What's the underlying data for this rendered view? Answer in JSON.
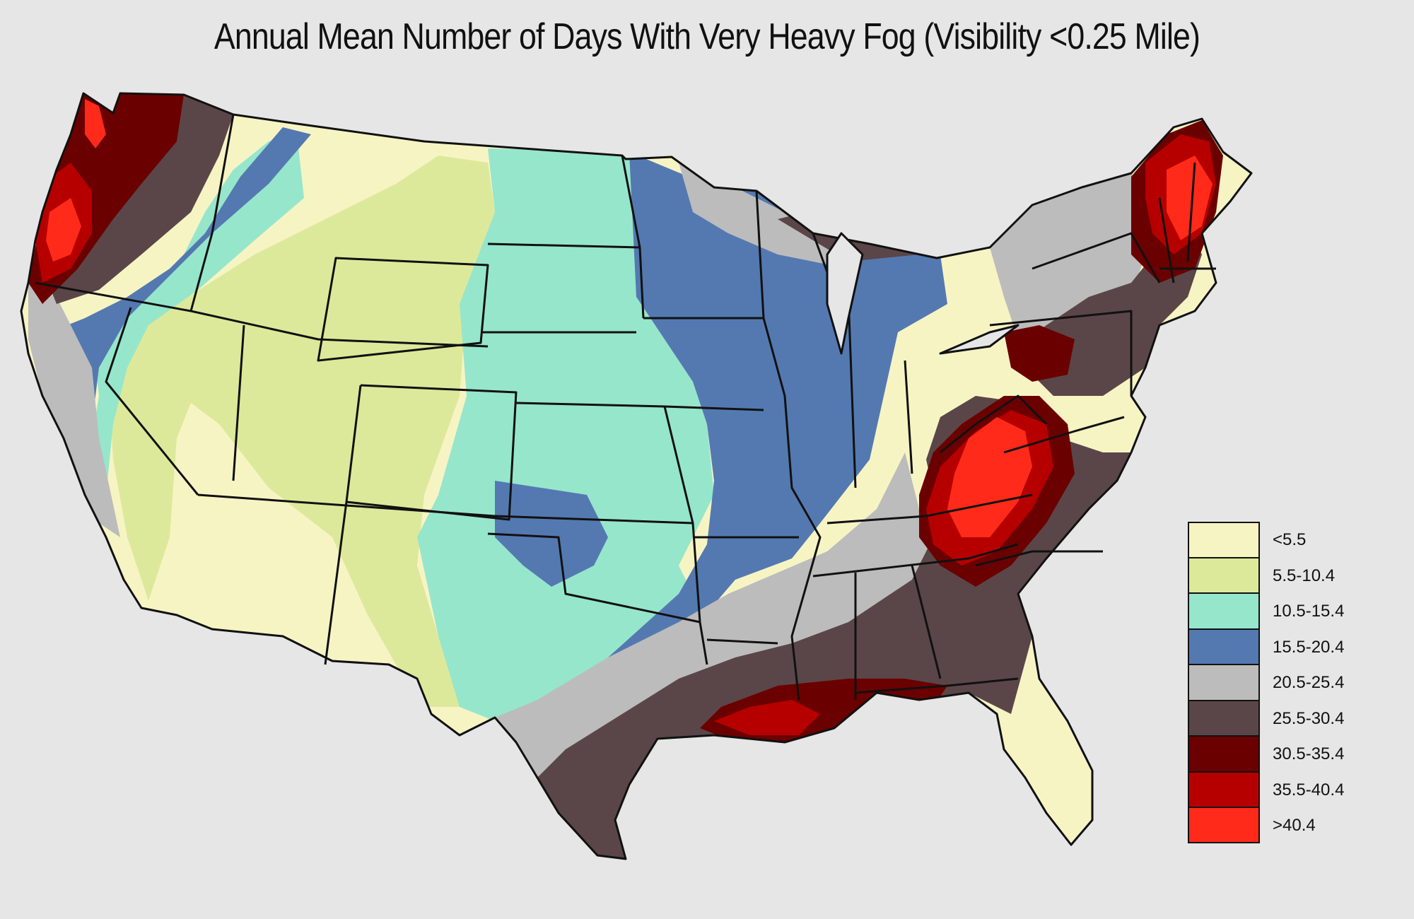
{
  "title": "Annual Mean Number of Days With Very Heavy Fog (Visibility <0.25 Mile)",
  "legend": [
    {
      "label": "<5.5",
      "color": "#f7f4c4"
    },
    {
      "label": "5.5-10.4",
      "color": "#dde99a"
    },
    {
      "label": "10.5-15.4",
      "color": "#96e6cc"
    },
    {
      "label": "15.5-20.4",
      "color": "#5479b1"
    },
    {
      "label": "20.5-25.4",
      "color": "#bcbcbc"
    },
    {
      "label": "25.5-30.4",
      "color": "#5a4648"
    },
    {
      "label": "30.5-35.4",
      "color": "#6b0000"
    },
    {
      "label": "35.5-40.4",
      "color": "#b60000"
    },
    {
      "label": ">40.4",
      "color": "#ff2a1a"
    }
  ],
  "colors": {
    "background": "#e6e6e6",
    "border": "#111111"
  }
}
